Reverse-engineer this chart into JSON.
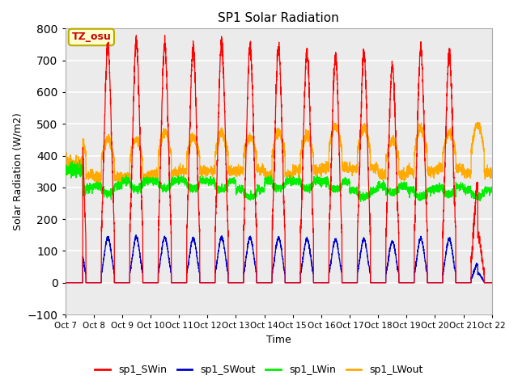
{
  "title": "SP1 Solar Radiation",
  "ylabel": "Solar Radiation (W/m2)",
  "xlabel": "Time",
  "ylim": [
    -100,
    800
  ],
  "yticks": [
    -100,
    0,
    100,
    200,
    300,
    400,
    500,
    600,
    700,
    800
  ],
  "annotation_text": "TZ_osu",
  "annotation_bg": "#ffffcc",
  "annotation_border": "#bbaa00",
  "annotation_text_color": "#cc0000",
  "colors": {
    "SWin": "#ff0000",
    "SWout": "#0000cc",
    "LWin": "#00ee00",
    "LWout": "#ffaa00"
  },
  "legend_labels": [
    "sp1_SWin",
    "sp1_SWout",
    "sp1_LWin",
    "sp1_LWout"
  ],
  "plot_bg": "#ebebeb",
  "n_days": 15,
  "start_day": 7,
  "points_per_day": 288
}
